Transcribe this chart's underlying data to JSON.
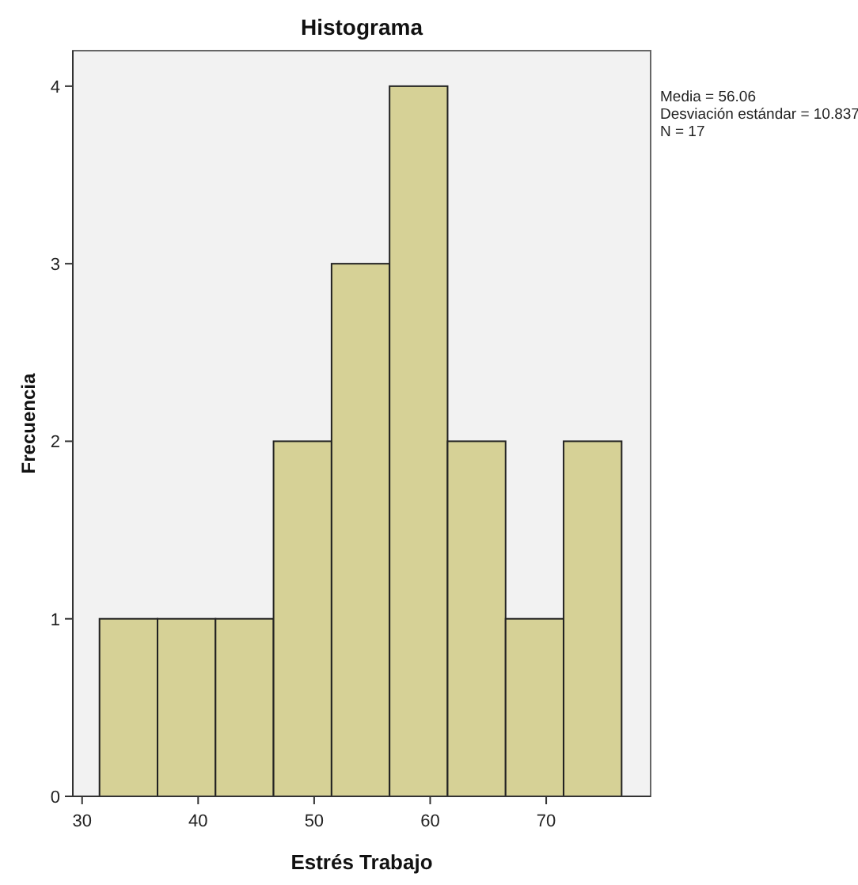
{
  "chart_data": {
    "type": "histogram",
    "title": "Histograma",
    "xlabel": "Estrés Trabajo",
    "ylabel": "Frecuencia",
    "bins": [
      31.5,
      36.5,
      41.5,
      46.5,
      51.5,
      56.5,
      61.5,
      66.5,
      71.5,
      76.5
    ],
    "values": [
      1,
      1,
      1,
      2,
      3,
      4,
      2,
      1,
      2
    ],
    "color": "#d6d196",
    "xlim": [
      29.2,
      79
    ],
    "xticks": [
      30,
      40,
      50,
      60,
      70
    ],
    "ylim": [
      0,
      4.2
    ],
    "yticks": [
      0,
      1,
      2,
      3,
      4
    ],
    "annotations": [
      "Media = 56.06",
      "Desviación estándar = 10.837",
      "N = 17"
    ]
  }
}
